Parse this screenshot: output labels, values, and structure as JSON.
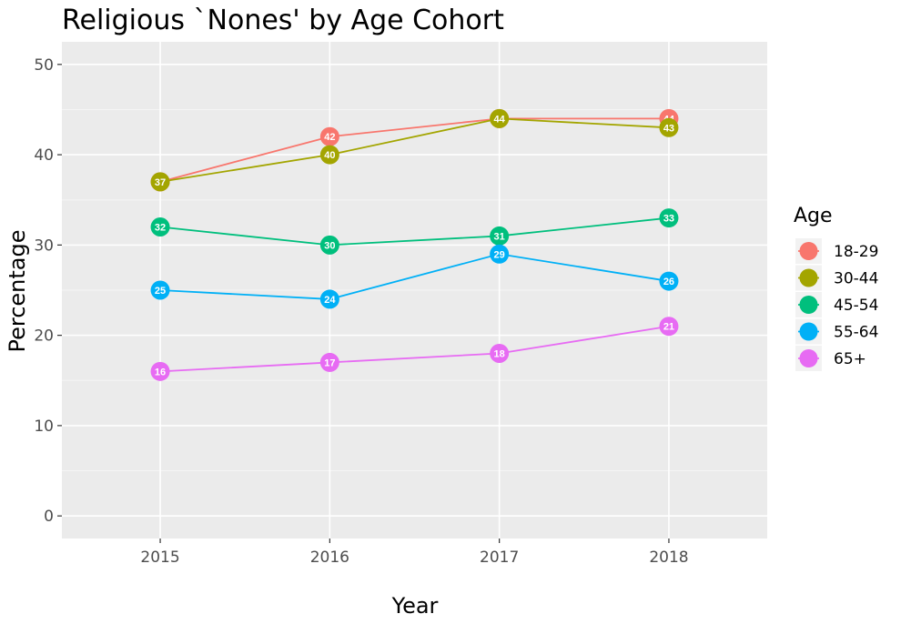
{
  "chart_data": {
    "type": "line",
    "title": "Religious `Nones' by Age Cohort",
    "xlabel": "Year",
    "ylabel": "Percentage",
    "x": [
      2015,
      2016,
      2017,
      2018
    ],
    "x_tick_labels": [
      "2015",
      "2016",
      "2017",
      "2018"
    ],
    "xlim": [
      2014.42,
      2018.58
    ],
    "ylim": [
      -2.5,
      52.5
    ],
    "y_ticks": [
      0,
      10,
      20,
      30,
      40,
      50
    ],
    "y_tick_labels": [
      "0",
      "10",
      "20",
      "30",
      "40",
      "50"
    ],
    "grid": true,
    "panel_background": "#ebebeb",
    "legend_title": "Age",
    "legend_position": "right",
    "series": [
      {
        "name": "18-29",
        "color": "#F8766D",
        "values": [
          37,
          42,
          44,
          44
        ]
      },
      {
        "name": "30-44",
        "color": "#A3A500",
        "values": [
          37,
          40,
          44,
          43
        ]
      },
      {
        "name": "45-54",
        "color": "#00BF7D",
        "values": [
          32,
          30,
          31,
          33
        ]
      },
      {
        "name": "55-64",
        "color": "#00B0F6",
        "values": [
          25,
          24,
          29,
          26
        ]
      },
      {
        "name": "65+",
        "color": "#E76BF3",
        "values": [
          16,
          17,
          18,
          21
        ]
      }
    ]
  }
}
